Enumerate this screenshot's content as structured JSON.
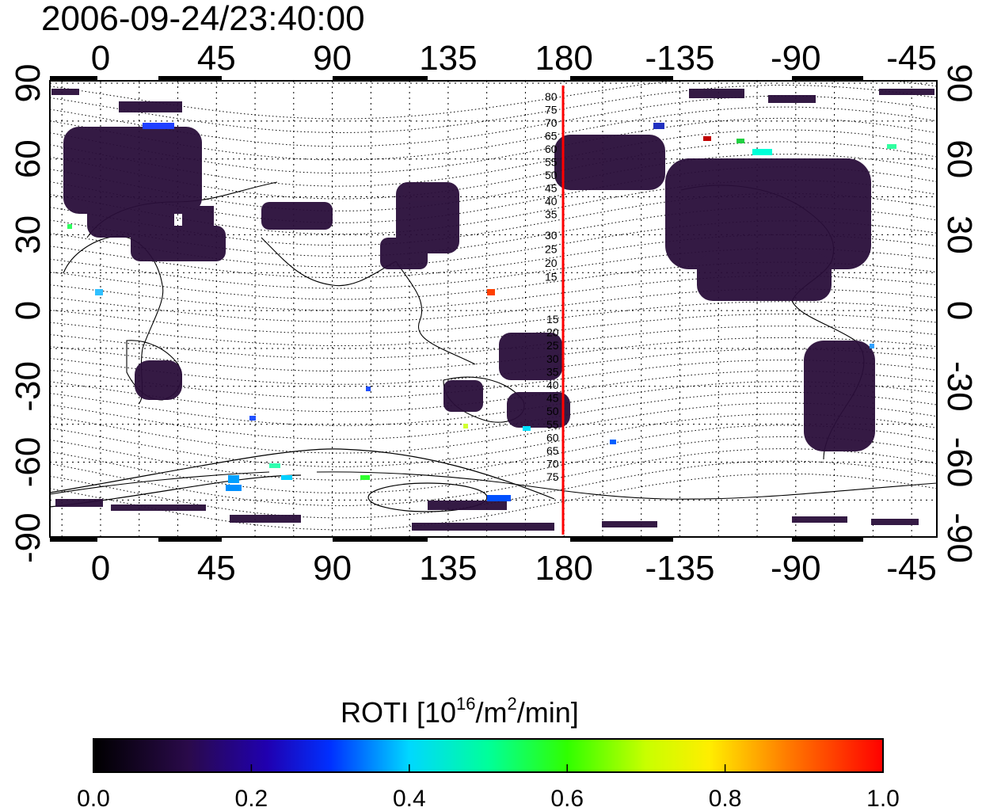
{
  "title": "2006-09-24/23:40:00",
  "map": {
    "x_ticks": [
      "0",
      "45",
      "90",
      "135",
      "180",
      "-135",
      "-90",
      "-45"
    ],
    "y_ticks": [
      "90",
      "60",
      "30",
      "0",
      "-30",
      "-60",
      "-90"
    ],
    "mlat_labels_north": [
      "80",
      "75",
      "70",
      "65",
      "60",
      "55",
      "50",
      "45",
      "40",
      "35",
      "30",
      "25",
      "20",
      "15"
    ],
    "mlat_labels_south": [
      "15",
      "20",
      "25",
      "30",
      "35",
      "40",
      "45",
      "50",
      "55",
      "60",
      "65",
      "70",
      "75"
    ],
    "terminator_color": "#ff0000",
    "land_data_color": "#2a0e3a"
  },
  "colorbar": {
    "title_main": "ROTI  [10",
    "title_sup1": "16",
    "title_mid": "/m",
    "title_sup2": "2",
    "title_end": "/min]",
    "tick_labels": [
      "0.0",
      "0.2",
      "0.4",
      "0.6",
      "0.8",
      "1.0"
    ],
    "min": 0.0,
    "max": 1.0
  }
}
